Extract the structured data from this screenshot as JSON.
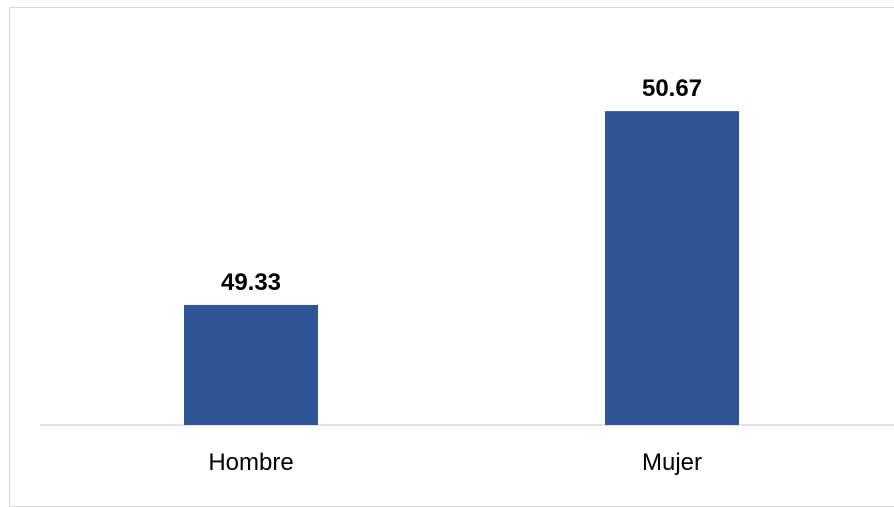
{
  "chart_data": {
    "type": "bar",
    "categories": [
      "Hombre",
      "Mujer"
    ],
    "values": [
      49.33,
      50.67
    ],
    "data_labels": [
      "49.33",
      "50.67"
    ],
    "bar_color": "#2f5597",
    "title": "",
    "xlabel": "",
    "ylabel": "",
    "ylim": [
      48.5,
      51.3
    ],
    "grid": false,
    "legend": "none"
  }
}
